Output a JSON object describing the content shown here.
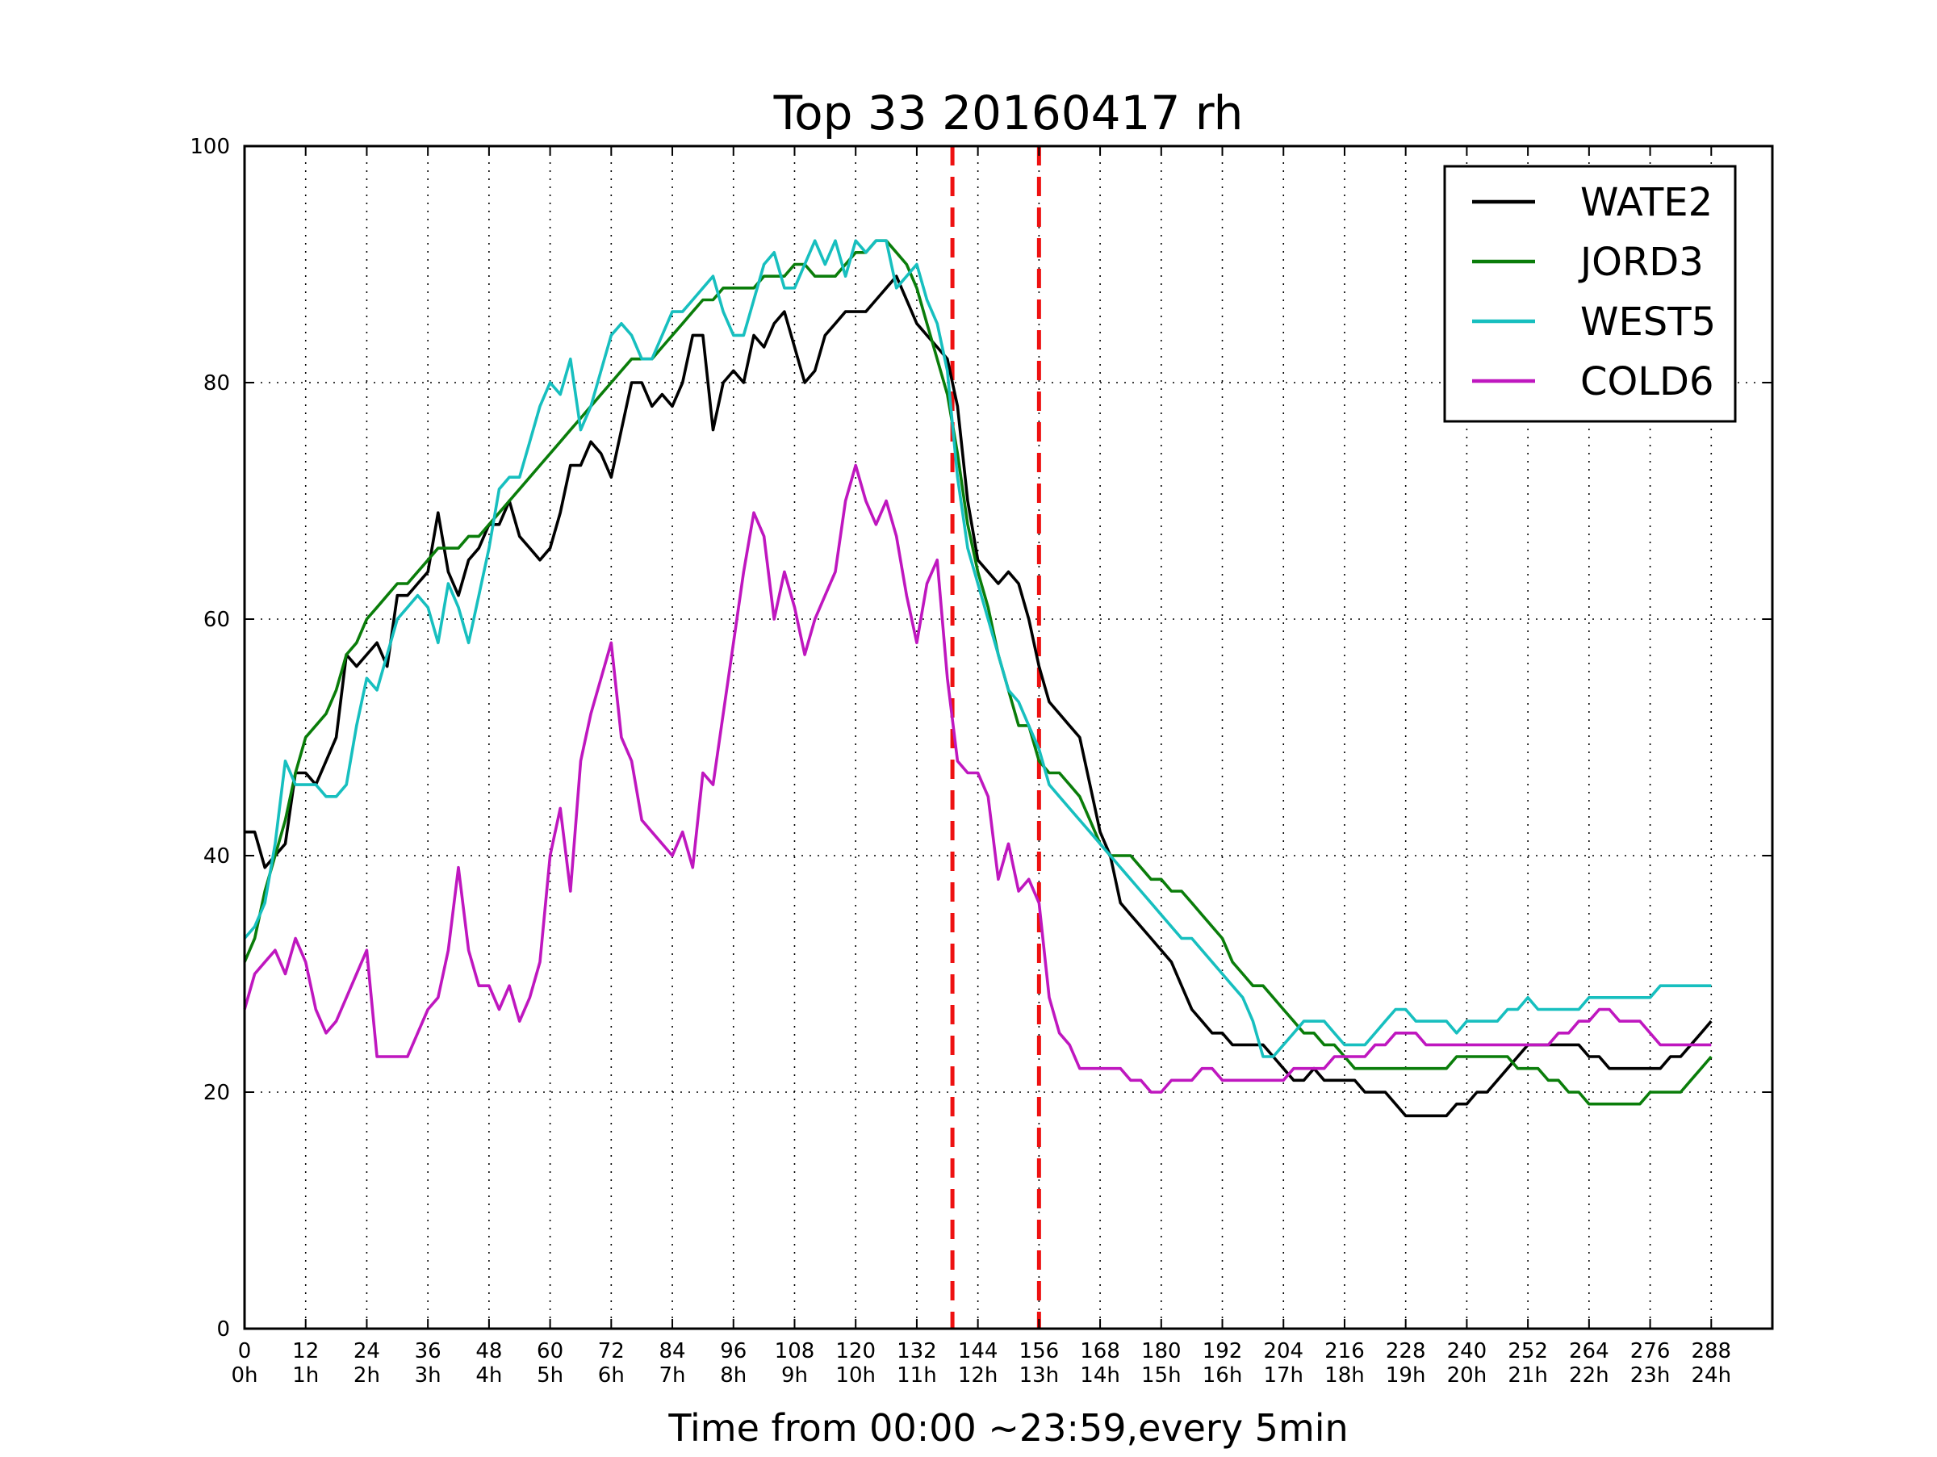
{
  "chart_data": {
    "type": "line",
    "title": "Top 33 20160417 rh",
    "xlabel": "Time from 00:00 ~23:59,every 5min",
    "ylabel": "",
    "xlim": [
      0,
      300
    ],
    "ylim": [
      0,
      100
    ],
    "grid": true,
    "legend_position": "top-right",
    "x_ticks": [
      0,
      12,
      24,
      36,
      48,
      60,
      72,
      84,
      96,
      108,
      120,
      132,
      144,
      156,
      168,
      180,
      192,
      204,
      216,
      228,
      240,
      252,
      264,
      276,
      288
    ],
    "x_tick_labels_top": [
      "0",
      "12",
      "24",
      "36",
      "48",
      "60",
      "72",
      "84",
      "96",
      "108",
      "120",
      "132",
      "144",
      "156",
      "168",
      "180",
      "192",
      "204",
      "216",
      "228",
      "240",
      "252",
      "264",
      "276",
      "288"
    ],
    "x_tick_labels_bottom": [
      "0h",
      "1h",
      "2h",
      "3h",
      "4h",
      "5h",
      "6h",
      "7h",
      "8h",
      "9h",
      "10h",
      "11h",
      "12h",
      "13h",
      "14h",
      "15h",
      "16h",
      "17h",
      "18h",
      "19h",
      "20h",
      "21h",
      "22h",
      "23h",
      "24h"
    ],
    "y_ticks": [
      0,
      20,
      40,
      60,
      80,
      100
    ],
    "y_tick_labels": [
      "0",
      "20",
      "40",
      "60",
      "80",
      "100"
    ],
    "vertical_lines": [
      {
        "x": 139,
        "color": "#ee1111",
        "style": "dashed"
      },
      {
        "x": 156,
        "color": "#ee1111",
        "style": "dashed"
      }
    ],
    "series": [
      {
        "name": "WATE2",
        "color": "#000000",
        "x": [
          0,
          2,
          4,
          6,
          8,
          10,
          12,
          14,
          16,
          18,
          20,
          22,
          24,
          26,
          28,
          30,
          32,
          34,
          36,
          38,
          40,
          42,
          44,
          46,
          48,
          50,
          52,
          54,
          56,
          58,
          60,
          62,
          64,
          66,
          68,
          70,
          72,
          74,
          76,
          78,
          80,
          82,
          84,
          86,
          88,
          90,
          92,
          94,
          96,
          98,
          100,
          102,
          104,
          106,
          108,
          110,
          112,
          114,
          116,
          118,
          120,
          122,
          124,
          126,
          128,
          130,
          132,
          134,
          136,
          138,
          140,
          142,
          144,
          146,
          148,
          150,
          152,
          154,
          156,
          158,
          160,
          162,
          164,
          166,
          168,
          170,
          172,
          174,
          176,
          178,
          180,
          182,
          184,
          186,
          188,
          190,
          192,
          194,
          196,
          198,
          200,
          202,
          204,
          206,
          208,
          210,
          212,
          214,
          216,
          218,
          220,
          222,
          224,
          226,
          228,
          230,
          232,
          234,
          236,
          238,
          240,
          242,
          244,
          246,
          248,
          250,
          252,
          254,
          256,
          258,
          260,
          262,
          264,
          266,
          268,
          270,
          272,
          274,
          276,
          278,
          280,
          282,
          284,
          286,
          288
        ],
        "y": [
          42,
          42,
          39,
          40,
          41,
          47,
          47,
          46,
          48,
          50,
          57,
          56,
          57,
          58,
          56,
          62,
          62,
          63,
          64,
          69,
          64,
          62,
          65,
          66,
          68,
          68,
          70,
          67,
          66,
          65,
          66,
          69,
          73,
          73,
          75,
          74,
          72,
          76,
          80,
          80,
          78,
          79,
          78,
          80,
          84,
          84,
          76,
          80,
          81,
          80,
          84,
          83,
          85,
          86,
          83,
          80,
          81,
          84,
          85,
          86,
          86,
          86,
          87,
          88,
          89,
          87,
          85,
          84,
          83,
          82,
          78,
          70,
          65,
          64,
          63,
          64,
          63,
          60,
          56,
          53,
          52,
          51,
          50,
          46,
          42,
          40,
          36,
          35,
          34,
          33,
          32,
          31,
          29,
          27,
          26,
          25,
          25,
          24,
          24,
          24,
          24,
          23,
          22,
          21,
          21,
          22,
          21,
          21,
          21,
          21,
          20,
          20,
          20,
          19,
          18,
          18,
          18,
          18,
          18,
          19,
          19,
          20,
          20,
          21,
          22,
          23,
          24,
          24,
          24,
          24,
          24,
          24,
          23,
          23,
          22,
          22,
          22,
          22,
          22,
          22,
          23,
          23,
          24,
          25,
          26
        ]
      },
      {
        "name": "JORD3",
        "color": "#0a7d0a",
        "x": [
          0,
          2,
          4,
          6,
          8,
          10,
          12,
          14,
          16,
          18,
          20,
          22,
          24,
          26,
          28,
          30,
          32,
          34,
          36,
          38,
          40,
          42,
          44,
          46,
          48,
          50,
          52,
          54,
          56,
          58,
          60,
          62,
          64,
          66,
          68,
          70,
          72,
          74,
          76,
          78,
          80,
          82,
          84,
          86,
          88,
          90,
          92,
          94,
          96,
          98,
          100,
          102,
          104,
          106,
          108,
          110,
          112,
          114,
          116,
          118,
          120,
          122,
          124,
          126,
          128,
          130,
          132,
          134,
          136,
          138,
          140,
          142,
          144,
          146,
          148,
          150,
          152,
          154,
          156,
          158,
          160,
          162,
          164,
          166,
          168,
          170,
          172,
          174,
          176,
          178,
          180,
          182,
          184,
          186,
          188,
          190,
          192,
          194,
          196,
          198,
          200,
          202,
          204,
          206,
          208,
          210,
          212,
          214,
          216,
          218,
          220,
          222,
          224,
          226,
          228,
          230,
          232,
          234,
          236,
          238,
          240,
          242,
          244,
          246,
          248,
          250,
          252,
          254,
          256,
          258,
          260,
          262,
          264,
          266,
          268,
          270,
          272,
          274,
          276,
          278,
          280,
          282,
          284,
          286,
          288
        ],
        "y": [
          31,
          33,
          37,
          40,
          43,
          47,
          50,
          51,
          52,
          54,
          57,
          58,
          60,
          61,
          62,
          63,
          63,
          64,
          65,
          66,
          66,
          66,
          67,
          67,
          68,
          69,
          70,
          71,
          72,
          73,
          74,
          75,
          76,
          77,
          78,
          79,
          80,
          81,
          82,
          82,
          82,
          83,
          84,
          85,
          86,
          87,
          87,
          88,
          88,
          88,
          88,
          89,
          89,
          89,
          90,
          90,
          89,
          89,
          89,
          90,
          91,
          91,
          92,
          92,
          91,
          90,
          88,
          85,
          82,
          79,
          74,
          68,
          64,
          61,
          57,
          54,
          51,
          51,
          48,
          47,
          47,
          46,
          45,
          43,
          41,
          40,
          40,
          40,
          39,
          38,
          38,
          37,
          37,
          36,
          35,
          34,
          33,
          31,
          30,
          29,
          29,
          28,
          27,
          26,
          25,
          25,
          24,
          24,
          23,
          22,
          22,
          22,
          22,
          22,
          22,
          22,
          22,
          22,
          22,
          23,
          23,
          23,
          23,
          23,
          23,
          22,
          22,
          22,
          21,
          21,
          20,
          20,
          19,
          19,
          19,
          19,
          19,
          19,
          20,
          20,
          20,
          20,
          21,
          22,
          23
        ]
      },
      {
        "name": "WEST5",
        "color": "#17bfbf",
        "x": [
          0,
          2,
          4,
          6,
          8,
          10,
          12,
          14,
          16,
          18,
          20,
          22,
          24,
          26,
          28,
          30,
          32,
          34,
          36,
          38,
          40,
          42,
          44,
          46,
          48,
          50,
          52,
          54,
          56,
          58,
          60,
          62,
          64,
          66,
          68,
          70,
          72,
          74,
          76,
          78,
          80,
          82,
          84,
          86,
          88,
          90,
          92,
          94,
          96,
          98,
          100,
          102,
          104,
          106,
          108,
          110,
          112,
          114,
          116,
          118,
          120,
          122,
          124,
          126,
          128,
          130,
          132,
          134,
          136,
          138,
          140,
          142,
          144,
          146,
          148,
          150,
          152,
          154,
          156,
          158,
          160,
          162,
          164,
          166,
          168,
          170,
          172,
          174,
          176,
          178,
          180,
          182,
          184,
          186,
          188,
          190,
          192,
          194,
          196,
          198,
          200,
          202,
          204,
          206,
          208,
          210,
          212,
          214,
          216,
          218,
          220,
          222,
          224,
          226,
          228,
          230,
          232,
          234,
          236,
          238,
          240,
          242,
          244,
          246,
          248,
          250,
          252,
          254,
          256,
          258,
          260,
          262,
          264,
          266,
          268,
          270,
          272,
          274,
          276,
          278,
          280,
          282,
          284,
          286,
          288
        ],
        "y": [
          33,
          34,
          36,
          41,
          48,
          46,
          46,
          46,
          45,
          45,
          46,
          51,
          55,
          54,
          57,
          60,
          61,
          62,
          61,
          58,
          63,
          61,
          58,
          62,
          66,
          71,
          72,
          72,
          75,
          78,
          80,
          79,
          82,
          76,
          78,
          81,
          84,
          85,
          84,
          82,
          82,
          84,
          86,
          86,
          87,
          88,
          89,
          86,
          84,
          84,
          87,
          90,
          91,
          88,
          88,
          90,
          92,
          90,
          92,
          89,
          92,
          91,
          92,
          92,
          88,
          89,
          90,
          87,
          85,
          81,
          72,
          66,
          63,
          60,
          57,
          54,
          53,
          51,
          49,
          46,
          45,
          44,
          43,
          42,
          41,
          40,
          39,
          38,
          37,
          36,
          35,
          34,
          33,
          33,
          32,
          31,
          30,
          29,
          28,
          26,
          23,
          23,
          24,
          25,
          26,
          26,
          26,
          25,
          24,
          24,
          24,
          25,
          26,
          27,
          27,
          26,
          26,
          26,
          26,
          25,
          26,
          26,
          26,
          26,
          27,
          27,
          28,
          27,
          27,
          27,
          27,
          27,
          28,
          28,
          28,
          28,
          28,
          28,
          28,
          29,
          29,
          29,
          29,
          29,
          29
        ]
      },
      {
        "name": "COLD6",
        "color": "#bf17bf",
        "x": [
          0,
          2,
          4,
          6,
          8,
          10,
          12,
          14,
          16,
          18,
          20,
          22,
          24,
          26,
          28,
          30,
          32,
          34,
          36,
          38,
          40,
          42,
          44,
          46,
          48,
          50,
          52,
          54,
          56,
          58,
          60,
          62,
          64,
          66,
          68,
          70,
          72,
          74,
          76,
          78,
          80,
          82,
          84,
          86,
          88,
          90,
          92,
          94,
          96,
          98,
          100,
          102,
          104,
          106,
          108,
          110,
          112,
          114,
          116,
          118,
          120,
          122,
          124,
          126,
          128,
          130,
          132,
          134,
          136,
          138,
          140,
          142,
          144,
          146,
          148,
          150,
          152,
          154,
          156,
          158,
          160,
          162,
          164,
          166,
          168,
          170,
          172,
          174,
          176,
          178,
          180,
          182,
          184,
          186,
          188,
          190,
          192,
          194,
          196,
          198,
          200,
          202,
          204,
          206,
          208,
          210,
          212,
          214,
          216,
          218,
          220,
          222,
          224,
          226,
          228,
          230,
          232,
          234,
          236,
          238,
          240,
          242,
          244,
          246,
          248,
          250,
          252,
          254,
          256,
          258,
          260,
          262,
          264,
          266,
          268,
          270,
          272,
          274,
          276,
          278,
          280,
          282,
          284,
          286,
          288
        ],
        "y": [
          27,
          30,
          31,
          32,
          30,
          33,
          31,
          27,
          25,
          26,
          28,
          30,
          32,
          23,
          23,
          23,
          23,
          25,
          27,
          28,
          32,
          39,
          32,
          29,
          29,
          27,
          29,
          26,
          28,
          31,
          40,
          44,
          37,
          48,
          52,
          55,
          58,
          50,
          48,
          43,
          42,
          41,
          40,
          42,
          39,
          47,
          46,
          52,
          58,
          64,
          69,
          67,
          60,
          64,
          61,
          57,
          60,
          62,
          64,
          70,
          73,
          70,
          68,
          70,
          67,
          62,
          58,
          63,
          65,
          55,
          48,
          47,
          47,
          45,
          38,
          41,
          37,
          38,
          36,
          28,
          25,
          24,
          22,
          22,
          22,
          22,
          22,
          21,
          21,
          20,
          20,
          21,
          21,
          21,
          22,
          22,
          21,
          21,
          21,
          21,
          21,
          21,
          21,
          22,
          22,
          22,
          22,
          23,
          23,
          23,
          23,
          24,
          24,
          25,
          25,
          25,
          24,
          24,
          24,
          24,
          24,
          24,
          24,
          24,
          24,
          24,
          24,
          24,
          24,
          25,
          25,
          26,
          26,
          27,
          27,
          26,
          26,
          26,
          25,
          24,
          24,
          24,
          24,
          24,
          24
        ]
      }
    ]
  }
}
